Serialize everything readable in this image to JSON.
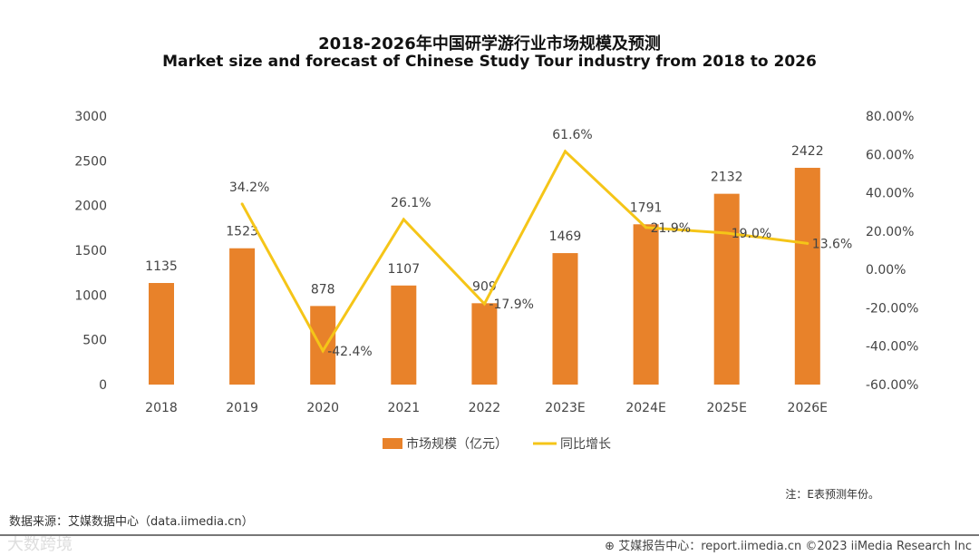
{
  "chart_data": {
    "type": "bar+line",
    "title": "2018-2026年中国研学游行业市场规模及预测",
    "subtitle": "Market size and forecast of Chinese Study Tour industry from 2018 to 2026",
    "categories": [
      "2018",
      "2019",
      "2020",
      "2021",
      "2022",
      "2023E",
      "2024E",
      "2025E",
      "2026E"
    ],
    "series": [
      {
        "name": "市场规模（亿元）",
        "type": "bar",
        "axis": "left",
        "color": "#E8822A",
        "values": [
          1135,
          1523,
          878,
          1107,
          909,
          1469,
          1791,
          2132,
          2422
        ],
        "labels": [
          "1135",
          "1523",
          "878",
          "1107",
          "909",
          "1469",
          "1791",
          "2132",
          "2422"
        ]
      },
      {
        "name": "同比增长",
        "type": "line",
        "axis": "right",
        "color": "#F5C518",
        "values": [
          null,
          34.2,
          -42.4,
          26.1,
          -17.9,
          61.6,
          21.9,
          19.0,
          13.6
        ],
        "labels": [
          "",
          "34.2%",
          "-42.4%",
          "26.1%",
          "-17.9%",
          "61.6%",
          "21.9%",
          "19.0%",
          "13.6%"
        ]
      }
    ],
    "ylim_left": [
      0,
      3000
    ],
    "yticks_left": [
      "0",
      "500",
      "1000",
      "1500",
      "2000",
      "2500",
      "3000"
    ],
    "ylim_right": [
      -60,
      80
    ],
    "yticks_right": [
      "-60.00%",
      "-40.00%",
      "-20.00%",
      "0.00%",
      "20.00%",
      "40.00%",
      "60.00%",
      "80.00%"
    ],
    "grid": false,
    "legend_position": "bottom"
  },
  "note": "注：E表预测年份。",
  "source": "数据来源：艾媒数据中心（data.iimedia.cn）",
  "footer": "艾媒报告中心：report.iimedia.cn  ©2023  iiMedia Research Inc",
  "watermark": "大数跨境"
}
